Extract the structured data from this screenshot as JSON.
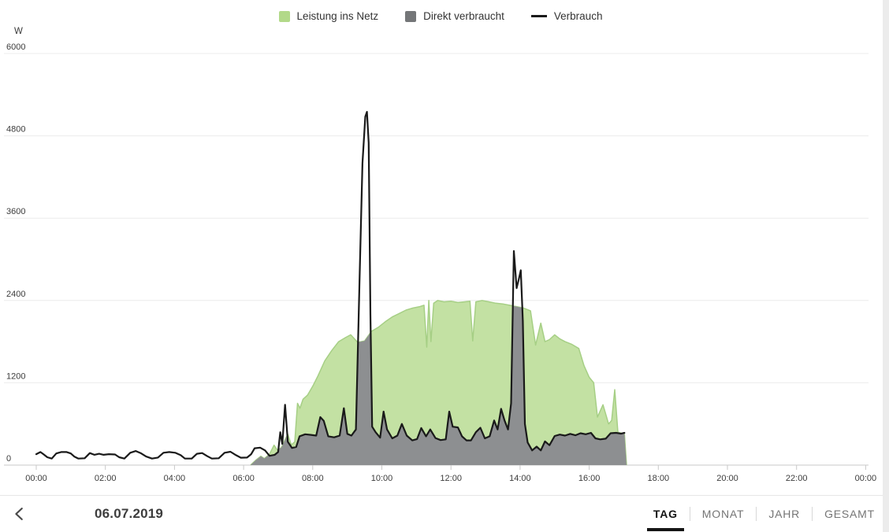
{
  "legend": {
    "items": [
      {
        "label": "Leistung ins Netz",
        "type": "area",
        "color": "#b2d989"
      },
      {
        "label": "Direkt verbraucht",
        "type": "area",
        "color": "#747678"
      },
      {
        "label": "Verbrauch",
        "type": "line",
        "color": "#1a1a1a"
      }
    ]
  },
  "chart_data": {
    "type": "area",
    "title": "",
    "unit": "W",
    "y_axis": {
      "label": "W",
      "ticks": [
        0,
        1200,
        2400,
        3600,
        4800,
        6000
      ],
      "max": 6000,
      "grid": true
    },
    "x_axis": {
      "tick_hours": [
        0,
        2,
        4,
        6,
        8,
        10,
        12,
        14,
        16,
        18,
        20,
        22,
        24
      ],
      "tick_labels": [
        "00:00",
        "02:00",
        "04:00",
        "06:00",
        "08:00",
        "10:00",
        "12:00",
        "14:00",
        "16:00",
        "18:00",
        "20:00",
        "22:00",
        "00:00"
      ]
    },
    "colors": {
      "production_fill": "#c3e1a3",
      "production_edge": "#a6cf85",
      "direct_fill": "#8d8f91",
      "consumption_line": "#1a1a1a",
      "grid": "#ececec",
      "axis": "#c9c9c9",
      "label": "#3c3c3c"
    },
    "series": [
      {
        "name": "Leistung ins Netz",
        "type": "area",
        "points": [
          [
            6.2,
            0
          ],
          [
            6.35,
            70
          ],
          [
            6.5,
            130
          ],
          [
            6.6,
            95
          ],
          [
            6.75,
            160
          ],
          [
            6.88,
            290
          ],
          [
            6.98,
            215
          ],
          [
            7.1,
            260
          ],
          [
            7.2,
            370
          ],
          [
            7.28,
            450
          ],
          [
            7.38,
            295
          ],
          [
            7.48,
            340
          ],
          [
            7.56,
            900
          ],
          [
            7.63,
            830
          ],
          [
            7.72,
            960
          ],
          [
            7.85,
            1020
          ],
          [
            8.0,
            1150
          ],
          [
            8.15,
            1300
          ],
          [
            8.35,
            1520
          ],
          [
            8.55,
            1670
          ],
          [
            8.75,
            1800
          ],
          [
            8.95,
            1860
          ],
          [
            9.1,
            1900
          ],
          [
            9.3,
            1790
          ],
          [
            9.5,
            1810
          ],
          [
            9.7,
            1950
          ],
          [
            9.9,
            2010
          ],
          [
            10.1,
            2090
          ],
          [
            10.3,
            2160
          ],
          [
            10.5,
            2210
          ],
          [
            10.7,
            2260
          ],
          [
            10.9,
            2290
          ],
          [
            11.1,
            2310
          ],
          [
            11.22,
            2330
          ],
          [
            11.3,
            1720
          ],
          [
            11.36,
            2400
          ],
          [
            11.42,
            1800
          ],
          [
            11.5,
            2360
          ],
          [
            11.62,
            2400
          ],
          [
            11.8,
            2380
          ],
          [
            12.0,
            2390
          ],
          [
            12.2,
            2370
          ],
          [
            12.4,
            2380
          ],
          [
            12.55,
            2390
          ],
          [
            12.63,
            1810
          ],
          [
            12.72,
            2380
          ],
          [
            12.9,
            2400
          ],
          [
            13.1,
            2380
          ],
          [
            13.3,
            2360
          ],
          [
            13.5,
            2350
          ],
          [
            13.7,
            2330
          ],
          [
            13.9,
            2310
          ],
          [
            14.1,
            2290
          ],
          [
            14.3,
            2250
          ],
          [
            14.45,
            1750
          ],
          [
            14.6,
            2070
          ],
          [
            14.72,
            1800
          ],
          [
            14.85,
            1830
          ],
          [
            15.0,
            1900
          ],
          [
            15.15,
            1840
          ],
          [
            15.3,
            1800
          ],
          [
            15.5,
            1760
          ],
          [
            15.7,
            1700
          ],
          [
            15.85,
            1450
          ],
          [
            16.0,
            1280
          ],
          [
            16.13,
            1200
          ],
          [
            16.24,
            700
          ],
          [
            16.4,
            880
          ],
          [
            16.56,
            600
          ],
          [
            16.65,
            650
          ],
          [
            16.74,
            1100
          ],
          [
            16.83,
            480
          ],
          [
            16.95,
            465
          ],
          [
            17.02,
            455
          ],
          [
            17.08,
            0
          ]
        ]
      },
      {
        "name": "Direkt verbraucht",
        "type": "area",
        "points_rule": "minimum of Leistung ins Netz and Verbrauch at each time"
      },
      {
        "name": "Verbrauch",
        "type": "line",
        "points": [
          [
            0.0,
            160
          ],
          [
            0.12,
            190
          ],
          [
            0.22,
            155
          ],
          [
            0.32,
            115
          ],
          [
            0.45,
            95
          ],
          [
            0.58,
            170
          ],
          [
            0.72,
            190
          ],
          [
            0.88,
            190
          ],
          [
            1.0,
            170
          ],
          [
            1.1,
            125
          ],
          [
            1.22,
            95
          ],
          [
            1.4,
            100
          ],
          [
            1.55,
            175
          ],
          [
            1.68,
            150
          ],
          [
            1.82,
            165
          ],
          [
            1.95,
            150
          ],
          [
            2.1,
            160
          ],
          [
            2.28,
            155
          ],
          [
            2.4,
            115
          ],
          [
            2.55,
            95
          ],
          [
            2.72,
            180
          ],
          [
            2.88,
            205
          ],
          [
            3.02,
            175
          ],
          [
            3.18,
            125
          ],
          [
            3.35,
            95
          ],
          [
            3.52,
            110
          ],
          [
            3.68,
            180
          ],
          [
            3.85,
            190
          ],
          [
            4.02,
            180
          ],
          [
            4.18,
            145
          ],
          [
            4.3,
            95
          ],
          [
            4.5,
            95
          ],
          [
            4.65,
            165
          ],
          [
            4.8,
            175
          ],
          [
            4.95,
            130
          ],
          [
            5.08,
            95
          ],
          [
            5.28,
            100
          ],
          [
            5.45,
            180
          ],
          [
            5.62,
            195
          ],
          [
            5.78,
            145
          ],
          [
            5.92,
            108
          ],
          [
            6.1,
            110
          ],
          [
            6.22,
            160
          ],
          [
            6.32,
            245
          ],
          [
            6.48,
            255
          ],
          [
            6.62,
            215
          ],
          [
            6.75,
            135
          ],
          [
            6.9,
            150
          ],
          [
            7.0,
            190
          ],
          [
            7.06,
            480
          ],
          [
            7.12,
            310
          ],
          [
            7.2,
            880
          ],
          [
            7.28,
            340
          ],
          [
            7.4,
            250
          ],
          [
            7.52,
            265
          ],
          [
            7.62,
            420
          ],
          [
            7.78,
            450
          ],
          [
            7.95,
            440
          ],
          [
            8.1,
            430
          ],
          [
            8.22,
            700
          ],
          [
            8.32,
            645
          ],
          [
            8.45,
            420
          ],
          [
            8.62,
            405
          ],
          [
            8.78,
            430
          ],
          [
            8.9,
            830
          ],
          [
            9.0,
            455
          ],
          [
            9.12,
            430
          ],
          [
            9.25,
            520
          ],
          [
            9.35,
            2600
          ],
          [
            9.44,
            4400
          ],
          [
            9.52,
            5080
          ],
          [
            9.57,
            5150
          ],
          [
            9.62,
            4700
          ],
          [
            9.67,
            2200
          ],
          [
            9.72,
            560
          ],
          [
            9.82,
            480
          ],
          [
            9.95,
            400
          ],
          [
            10.05,
            780
          ],
          [
            10.15,
            520
          ],
          [
            10.3,
            390
          ],
          [
            10.45,
            430
          ],
          [
            10.58,
            600
          ],
          [
            10.72,
            430
          ],
          [
            10.88,
            360
          ],
          [
            11.02,
            380
          ],
          [
            11.14,
            540
          ],
          [
            11.28,
            420
          ],
          [
            11.4,
            520
          ],
          [
            11.55,
            395
          ],
          [
            11.7,
            365
          ],
          [
            11.85,
            375
          ],
          [
            11.95,
            780
          ],
          [
            12.05,
            560
          ],
          [
            12.2,
            550
          ],
          [
            12.32,
            420
          ],
          [
            12.45,
            360
          ],
          [
            12.58,
            360
          ],
          [
            12.72,
            480
          ],
          [
            12.85,
            545
          ],
          [
            12.98,
            390
          ],
          [
            13.12,
            420
          ],
          [
            13.25,
            650
          ],
          [
            13.35,
            520
          ],
          [
            13.45,
            820
          ],
          [
            13.55,
            650
          ],
          [
            13.65,
            520
          ],
          [
            13.74,
            900
          ],
          [
            13.82,
            3120
          ],
          [
            13.9,
            2580
          ],
          [
            13.96,
            2700
          ],
          [
            14.02,
            2840
          ],
          [
            14.08,
            2100
          ],
          [
            14.14,
            600
          ],
          [
            14.22,
            330
          ],
          [
            14.35,
            215
          ],
          [
            14.48,
            270
          ],
          [
            14.6,
            215
          ],
          [
            14.72,
            345
          ],
          [
            14.85,
            290
          ],
          [
            15.0,
            425
          ],
          [
            15.15,
            445
          ],
          [
            15.3,
            430
          ],
          [
            15.45,
            455
          ],
          [
            15.6,
            435
          ],
          [
            15.75,
            465
          ],
          [
            15.9,
            450
          ],
          [
            16.05,
            470
          ],
          [
            16.18,
            390
          ],
          [
            16.32,
            375
          ],
          [
            16.48,
            385
          ],
          [
            16.62,
            465
          ],
          [
            16.78,
            470
          ],
          [
            16.92,
            458
          ],
          [
            17.02,
            470
          ]
        ]
      }
    ]
  },
  "footer": {
    "date": "06.07.2019",
    "back_icon": "chevron-left-icon",
    "tabs": [
      {
        "label": "TAG",
        "active": true
      },
      {
        "label": "MONAT",
        "active": false
      },
      {
        "label": "JAHR",
        "active": false
      },
      {
        "label": "GESAMT",
        "active": false
      }
    ]
  }
}
